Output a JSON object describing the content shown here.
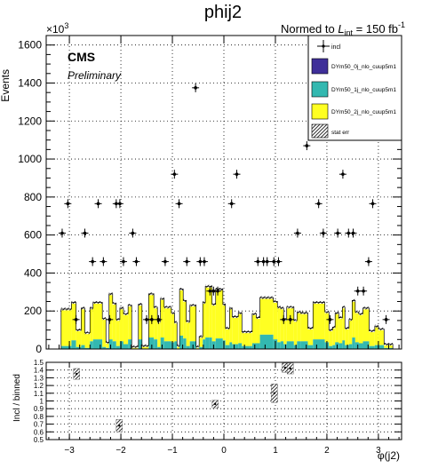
{
  "chart_data": [
    {
      "type": "histogram",
      "title": "phij2",
      "normalization": "Normed to L_int = 150 fb^-1",
      "normalization_parts": {
        "prefix": "Normed to ",
        "symbol": "L",
        "subscript": "int",
        "suffix": " = 150 fb",
        "exponent": "-1"
      },
      "experiment_label": "CMS",
      "status_label": "Preliminary",
      "ylabel": "Events",
      "y_multiplier": "×10³",
      "y_multiplier_parts": {
        "base": "×10",
        "exponent": "3"
      },
      "xlabel": "φ(j2)",
      "xlim": [
        -3.45,
        3.45
      ],
      "ylim": [
        0,
        1650
      ],
      "x_ticks": [
        -3,
        -2,
        -1,
        0,
        1,
        2,
        3
      ],
      "x_tick_labels": [
        "−3",
        "−2",
        "−1",
        "0",
        "1",
        "2",
        "3"
      ],
      "y_ticks": [
        0,
        200,
        400,
        600,
        800,
        1000,
        1200,
        1400,
        1600
      ],
      "y_tick_labels": [
        "0",
        "200",
        "400",
        "600",
        "800",
        "1000",
        "1200",
        "1400",
        "1600"
      ],
      "grid": true,
      "stacked": true,
      "legend_placement": "top-right",
      "legend": [
        {
          "label": "incl",
          "style": "marker"
        },
        {
          "label": "DYm50_0j_nlo_cuup5m1",
          "style": "fill",
          "color": "#3f2f99"
        },
        {
          "label": "DYm50_1j_nlo_cuup5m1",
          "style": "fill",
          "color": "#33b8b0"
        },
        {
          "label": "DYm50_2j_nlo_cuup5m1",
          "style": "fill",
          "color": "#ffff22"
        },
        {
          "label": "stat err",
          "style": "hatch"
        }
      ],
      "bin_edges": [
        -3.16,
        -2.96,
        -2.87,
        -2.77,
        -2.7,
        -2.6,
        -2.54,
        -2.36,
        -2.29,
        -2.23,
        -2.16,
        -2.09,
        -2.02,
        -1.95,
        -1.86,
        -1.79,
        -1.66,
        -1.59,
        -1.46,
        -1.36,
        -1.29,
        -1.23,
        -1.16,
        -1.02,
        -0.96,
        -0.91,
        -0.86,
        -0.79,
        -0.73,
        -0.66,
        -0.54,
        -0.48,
        -0.41,
        -0.36,
        -0.29,
        -0.23,
        -0.16,
        -0.02,
        0.03,
        0.11,
        0.16,
        0.28,
        0.35,
        0.49,
        0.55,
        0.63,
        0.7,
        0.96,
        1.04,
        1.1,
        1.16,
        1.22,
        1.36,
        1.42,
        1.49,
        1.63,
        1.73,
        1.96,
        2.04,
        2.11,
        2.16,
        2.23,
        2.3,
        2.35,
        2.43,
        2.49,
        2.55,
        2.62,
        2.7,
        2.82,
        2.93,
        3.0,
        3.11,
        3.28
      ],
      "series": [
        {
          "name": "DYm50_2j_nlo_cuup5m1",
          "color": "#ffff22",
          "values": [
            195,
            200,
            90,
            195,
            80,
            175,
            195,
            150,
            30,
            240,
            200,
            140,
            175,
            160,
            180,
            10,
            185,
            15,
            230,
            170,
            135,
            205,
            180,
            155,
            100,
            15,
            245,
            200,
            130,
            190,
            10,
            55,
            195,
            270,
            270,
            195,
            260,
            190,
            90,
            180,
            145,
            160,
            75,
            75,
            155,
            135,
            195,
            200,
            185,
            175,
            130,
            180,
            130,
            155,
            150,
            90,
            195,
            160,
            85,
            95,
            155,
            135,
            175,
            90,
            130,
            195,
            160,
            155,
            175,
            80,
            100,
            85,
            20
          ]
        },
        {
          "name": "DYm50_1j_nlo_cuup5m1",
          "color": "#33b8b0",
          "values": [
            15,
            45,
            10,
            20,
            5,
            40,
            50,
            10,
            5,
            50,
            40,
            15,
            40,
            25,
            50,
            2,
            50,
            2,
            60,
            50,
            10,
            60,
            40,
            35,
            40,
            2,
            70,
            55,
            15,
            40,
            2,
            10,
            50,
            60,
            60,
            40,
            55,
            45,
            20,
            35,
            25,
            30,
            15,
            15,
            30,
            30,
            75,
            50,
            35,
            40,
            25,
            40,
            20,
            40,
            40,
            20,
            50,
            35,
            15,
            20,
            35,
            30,
            45,
            20,
            25,
            60,
            35,
            30,
            40,
            15,
            20,
            20,
            5
          ]
        },
        {
          "name": "DYm50_0j_nlo_cuup5m1",
          "color": "#3f2f99",
          "values": [
            0.5,
            0.5,
            0.5,
            0.5,
            0.5,
            0.5,
            0.5,
            0.5,
            0.5,
            0.5,
            0.5,
            0.5,
            0.5,
            0.5,
            0.5,
            0.5,
            0.5,
            0.5,
            0.5,
            0.5,
            0.5,
            0.5,
            0.5,
            0.5,
            0.5,
            0.5,
            0.5,
            0.5,
            0.5,
            0.5,
            0.5,
            0.5,
            0.5,
            0.5,
            0.5,
            0.5,
            0.5,
            0.5,
            0.5,
            0.5,
            0.5,
            0.5,
            0.5,
            0.5,
            0.5,
            0.5,
            0.5,
            0.5,
            0.5,
            0.5,
            0.5,
            0.5,
            0.5,
            0.5,
            0.5,
            0.5,
            0.5,
            0.5,
            0.5,
            0.5,
            0.5,
            0.5,
            0.5,
            0.5,
            0.5,
            0.5,
            0.5,
            0.5,
            0.5,
            0.5,
            0.5,
            0.5,
            0.5
          ]
        }
      ],
      "incl_points": {
        "name": "incl",
        "x": [
          -3.14,
          -3.03,
          -2.87,
          -2.7,
          -2.55,
          -2.44,
          -2.34,
          -2.22,
          -2.09,
          -2.02,
          -1.95,
          -1.77,
          -1.7,
          -1.5,
          -1.4,
          -1.27,
          -1.14,
          -0.96,
          -0.87,
          -0.72,
          -0.55,
          -0.46,
          -0.38,
          -0.27,
          -0.2,
          -0.12,
          0.15,
          0.25,
          0.66,
          0.77,
          0.84,
          0.97,
          1.06,
          1.16,
          1.29,
          1.43,
          1.61,
          1.84,
          1.93,
          2.06,
          2.21,
          2.31,
          2.42,
          2.51,
          2.6,
          2.71,
          2.81,
          2.89,
          3.15
        ],
        "y": [
          610,
          765,
          155,
          610,
          460,
          765,
          460,
          155,
          765,
          765,
          460,
          610,
          460,
          155,
          155,
          155,
          460,
          920,
          765,
          460,
          1375,
          460,
          460,
          305,
          305,
          305,
          765,
          920,
          460,
          460,
          460,
          460,
          460,
          155,
          155,
          610,
          1070,
          765,
          610,
          155,
          610,
          920,
          610,
          610,
          305,
          305,
          460,
          765,
          155
        ]
      }
    },
    {
      "type": "scatter",
      "ylabel": "Incl / binned",
      "xlim": [
        -3.45,
        3.45
      ],
      "ylim": [
        0.5,
        1.5
      ],
      "x_ticks": [
        -3,
        -2,
        -1,
        0,
        1,
        2,
        3
      ],
      "x_tick_labels": [
        "−3",
        "−2",
        "−1",
        "0",
        "1",
        "2",
        "3"
      ],
      "y_ticks": [
        0.5,
        0.6,
        0.7,
        0.8,
        0.9,
        1.0,
        1.1,
        1.2,
        1.3,
        1.4,
        1.5
      ],
      "y_tick_labels": [
        "0.5",
        "0.6",
        "0.7",
        "0.8",
        "0.9",
        "1",
        "1.1",
        "1.2",
        "1.3",
        "1.4",
        "1.5"
      ],
      "grid": true,
      "points": {
        "x": [
          -2.86,
          -2.03,
          -0.17,
          0.98,
          1.19,
          1.29
        ],
        "y": [
          1.35,
          0.68,
          0.96,
          1.1,
          1.43,
          1.42
        ],
        "err": [
          0.07,
          0.08,
          0.05,
          0.12,
          0.06,
          0.07
        ]
      }
    }
  ]
}
